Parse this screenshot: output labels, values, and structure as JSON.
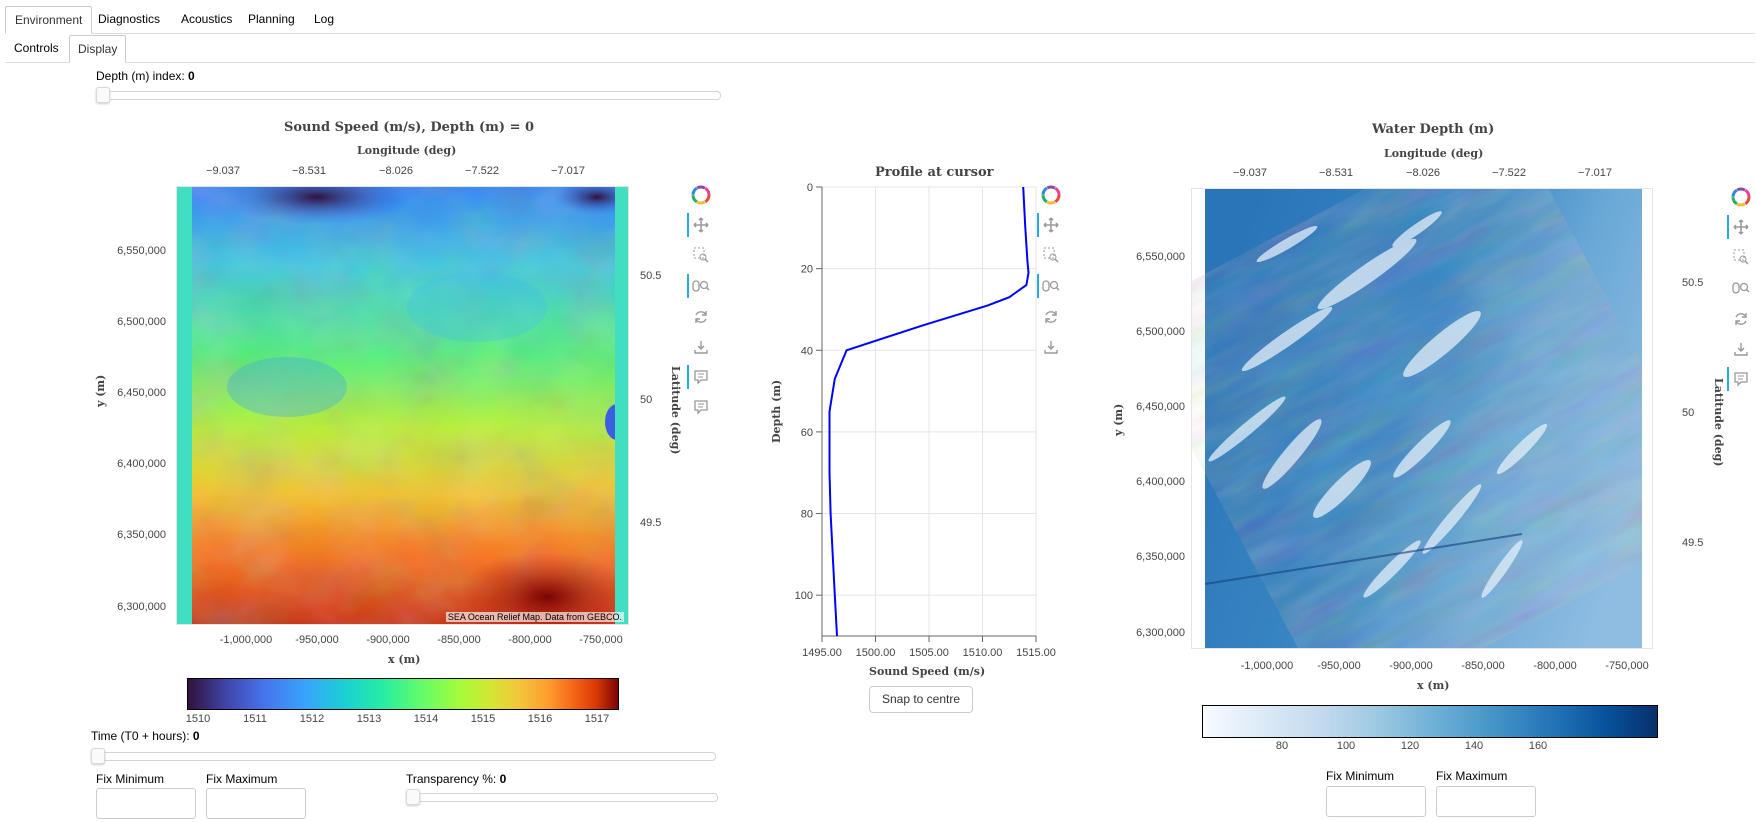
{
  "tabs": [
    {
      "label": "Environment",
      "active": true
    },
    {
      "label": "Diagnostics",
      "active": false
    },
    {
      "label": "Acoustics",
      "active": false
    },
    {
      "label": "Planning",
      "active": false
    },
    {
      "label": "Log",
      "active": false
    }
  ],
  "subtabs": [
    {
      "label": "Controls",
      "active": false
    },
    {
      "label": "Display",
      "active": true
    }
  ],
  "depth_slider": {
    "label": "Depth (m) index: ",
    "value": "0",
    "fraction": 0
  },
  "time_slider": {
    "label": "Time (T0 + hours): ",
    "value": "0",
    "fraction": 0
  },
  "transparency_slider": {
    "label": "Transparency %: ",
    "value": "0",
    "fraction": 0
  },
  "left_controls": {
    "fix_min_label": "Fix Minimum",
    "fix_max_label": "Fix Maximum",
    "fix_min_value": "",
    "fix_max_value": ""
  },
  "right_controls": {
    "fix_min_label": "Fix Minimum",
    "fix_max_label": "Fix Maximum",
    "fix_min_value": "",
    "fix_max_value": ""
  },
  "toolbar_icons": [
    "bokeh-logo-icon",
    "pan-icon",
    "box-zoom-icon",
    "wheel-zoom-icon",
    "reset-icon",
    "save-icon",
    "hover-icon",
    "hover-icon"
  ],
  "sound_speed_map": {
    "title": "Sound Speed (m/s), Depth (m) = 0",
    "top_axis_label": "Longitude (deg)",
    "top_ticks": [
      "−9.037",
      "−8.531",
      "−8.026",
      "−7.522",
      "−7.017"
    ],
    "x_axis_label": "x (m)",
    "x_ticks": [
      "-1,000,000",
      "-950,000",
      "-900,000",
      "-850,000",
      "-800,000",
      "-750,000"
    ],
    "y_axis_label": "y (m)",
    "y_ticks": [
      "6,550,000",
      "6,500,000",
      "6,450,000",
      "6,400,000",
      "6,350,000",
      "6,300,000"
    ],
    "right_axis_label": "Latitude (deg)",
    "right_ticks": [
      "50.5",
      "50",
      "49.5"
    ],
    "attribution": "SEA Ocean Relief Map. Data from GEBCO.",
    "colorbar_ticks": [
      "1510",
      "1511",
      "1512",
      "1513",
      "1514",
      "1515",
      "1516",
      "1517"
    ],
    "colormap": "turbo",
    "value_range": [
      1509.7,
      1517.6
    ]
  },
  "profile_chart": {
    "title": "Profile at cursor",
    "x_axis_label": "Sound Speed (m/s)",
    "y_axis_label": "Depth (m)",
    "x_ticks": [
      "1495.00",
      "1500.00",
      "1505.00",
      "1510.00",
      "1515.00"
    ],
    "y_ticks": [
      "0",
      "20",
      "40",
      "60",
      "80",
      "100"
    ],
    "line_color": "#0000ff",
    "snap_button": "Snap to centre"
  },
  "chart_data": {
    "type": "line",
    "title": "Profile at cursor",
    "xlabel": "Sound Speed (m/s)",
    "ylabel": "Depth (m)",
    "xlim": [
      1495,
      1515
    ],
    "ylim": [
      110,
      0
    ],
    "series": [
      {
        "x": [
          1513.8,
          1514.0,
          1514.2,
          1514.3,
          1514.1,
          1512.5,
          1510.5,
          1504.3,
          1497.3,
          1496.2,
          1495.7,
          1495.7,
          1495.8,
          1496.0,
          1496.2,
          1496.4
        ],
        "y": [
          0,
          10,
          18,
          21,
          24,
          27,
          29,
          34,
          40,
          47,
          55,
          70,
          80,
          90,
          100,
          110
        ]
      }
    ]
  },
  "water_depth_map": {
    "title": "Water Depth (m)",
    "top_axis_label": "Longitude (deg)",
    "top_ticks": [
      "−9.037",
      "−8.531",
      "−8.026",
      "−7.522",
      "−7.017"
    ],
    "x_axis_label": "x (m)",
    "x_ticks": [
      "-1,000,000",
      "-950,000",
      "-900,000",
      "-850,000",
      "-800,000",
      "-750,000"
    ],
    "y_axis_label": "y (m)",
    "y_ticks": [
      "6,550,000",
      "6,500,000",
      "6,450,000",
      "6,400,000",
      "6,350,000",
      "6,300,000"
    ],
    "right_axis_label": "Latitude (deg)",
    "right_ticks": [
      "50.5",
      "50",
      "49.5"
    ],
    "colorbar_ticks": [
      "80",
      "100",
      "120",
      "140",
      "160"
    ],
    "colormap": "blues",
    "value_range": [
      63,
      168
    ]
  }
}
